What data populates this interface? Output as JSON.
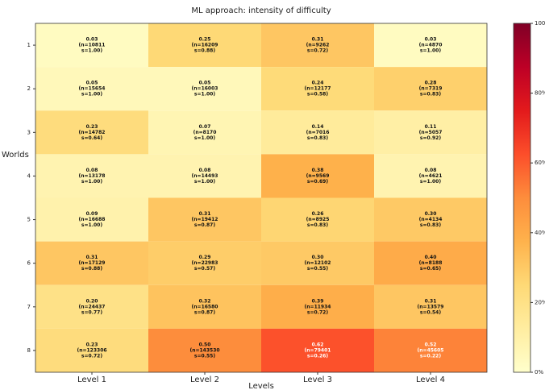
{
  "chart_data": {
    "type": "heatmap",
    "title": "ML approach: intensity of difficulty",
    "xlabel": "Levels",
    "ylabel": "Worlds",
    "categories": [
      "Level 1",
      "Level 2",
      "Level 3",
      "Level 4"
    ],
    "rows": [
      "1",
      "2",
      "3",
      "4",
      "5",
      "6",
      "7",
      "8"
    ],
    "values": [
      [
        3,
        25,
        31,
        3
      ],
      [
        5,
        5,
        24,
        28
      ],
      [
        23,
        7,
        14,
        11
      ],
      [
        8,
        8,
        38,
        8
      ],
      [
        9,
        31,
        26,
        30
      ],
      [
        31,
        29,
        30,
        40
      ],
      [
        20,
        32,
        39,
        31
      ],
      [
        23,
        50,
        62,
        52
      ]
    ],
    "value_labels": [
      [
        "0.03",
        "0.25",
        "0.31",
        "0.03"
      ],
      [
        "0.05",
        "0.05",
        "0.24",
        "0.28"
      ],
      [
        "0.23",
        "0.07",
        "0.14",
        "0.11"
      ],
      [
        "0.08",
        "0.08",
        "0.38",
        "0.08"
      ],
      [
        "0.09",
        "0.31",
        "0.26",
        "0.30"
      ],
      [
        "0.31",
        "0.29",
        "0.30",
        "0.40"
      ],
      [
        "0.20",
        "0.32",
        "0.39",
        "0.31"
      ],
      [
        "0.23",
        "0.50",
        "0.62",
        "0.52"
      ]
    ],
    "n_labels": [
      [
        "(n=10811",
        "(n=16209",
        "(n=9262",
        "(n=4870"
      ],
      [
        "(n=15654",
        "(n=16003",
        "(n=12177",
        "(n=7319"
      ],
      [
        "(n=14782",
        "(n=8170",
        "(n=7016",
        "(n=5057"
      ],
      [
        "(n=13178",
        "(n=14493",
        "(n=9569",
        "(n=4621"
      ],
      [
        "(n=16688",
        "(n=19412",
        "(n=8925",
        "(n=4134"
      ],
      [
        "(n=17129",
        "(n=22983",
        "(n=12102",
        "(n=8188"
      ],
      [
        "(n=24437",
        "(n=16580",
        "(n=11934",
        "(n=13579"
      ],
      [
        "(n=123306",
        "(n=143530",
        "(n=79401",
        "(n=45605"
      ]
    ],
    "s_labels": [
      [
        "s=1.00)",
        "s=0.88)",
        "s=0.72)",
        "s=1.00)"
      ],
      [
        "s=1.00)",
        "s=1.00)",
        "s=0.58)",
        "s=0.83)"
      ],
      [
        "s=0.64)",
        "s=1.00)",
        "s=0.83)",
        "s=0.92)"
      ],
      [
        "s=1.00)",
        "s=1.00)",
        "s=0.69)",
        "s=1.00)"
      ],
      [
        "s=1.00)",
        "s=0.87)",
        "s=0.83)",
        "s=0.83)"
      ],
      [
        "s=0.88)",
        "s=0.57)",
        "s=0.55)",
        "s=0.65)"
      ],
      [
        "s=0.77)",
        "s=0.87)",
        "s=0.72)",
        "s=0.54)"
      ],
      [
        "s=0.72)",
        "s=0.55)",
        "s=0.26)",
        "s=0.22)"
      ]
    ],
    "colormap": "YlOrRd",
    "zlim": [
      0,
      100
    ],
    "zticks": [
      {
        "value": 0,
        "label": "0%"
      },
      {
        "value": 20,
        "label": "20%"
      },
      {
        "value": 40,
        "label": "40%"
      },
      {
        "value": 60,
        "label": "60%"
      },
      {
        "value": 80,
        "label": "80%"
      },
      100
    ]
  }
}
